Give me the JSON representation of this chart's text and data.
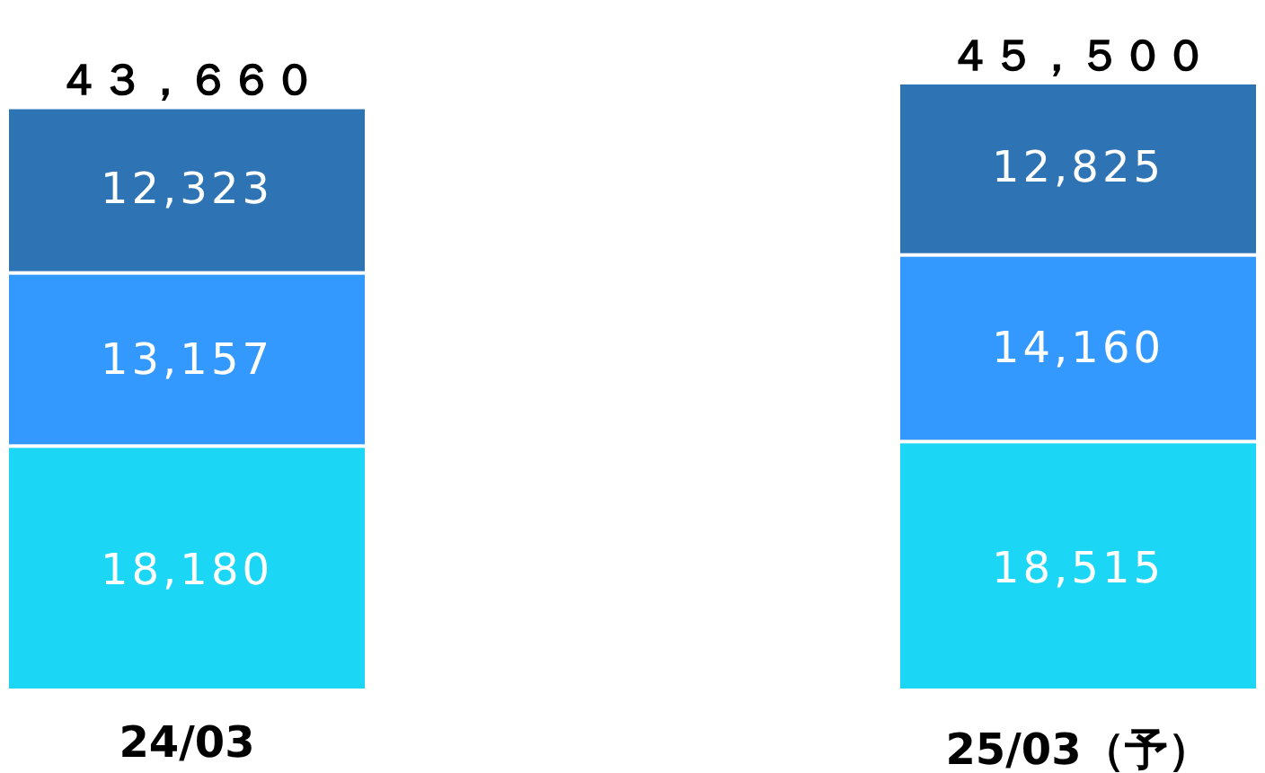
{
  "chart_data": {
    "type": "bar",
    "stacked": true,
    "categories": [
      "24/03",
      "25/03（予）"
    ],
    "series": [
      {
        "color": "#1cd6f5",
        "values": [
          18180,
          18515
        ],
        "value_labels": [
          "18,180",
          "18,515"
        ]
      },
      {
        "color": "#3399ff",
        "values": [
          13157,
          14160
        ],
        "value_labels": [
          "13,157",
          "14,160"
        ]
      },
      {
        "color": "#2e74b5",
        "values": [
          12323,
          12825
        ],
        "value_labels": [
          "12,323",
          "12,825"
        ]
      }
    ],
    "totals": [
      "４３，６６０",
      "４５，５００"
    ]
  }
}
